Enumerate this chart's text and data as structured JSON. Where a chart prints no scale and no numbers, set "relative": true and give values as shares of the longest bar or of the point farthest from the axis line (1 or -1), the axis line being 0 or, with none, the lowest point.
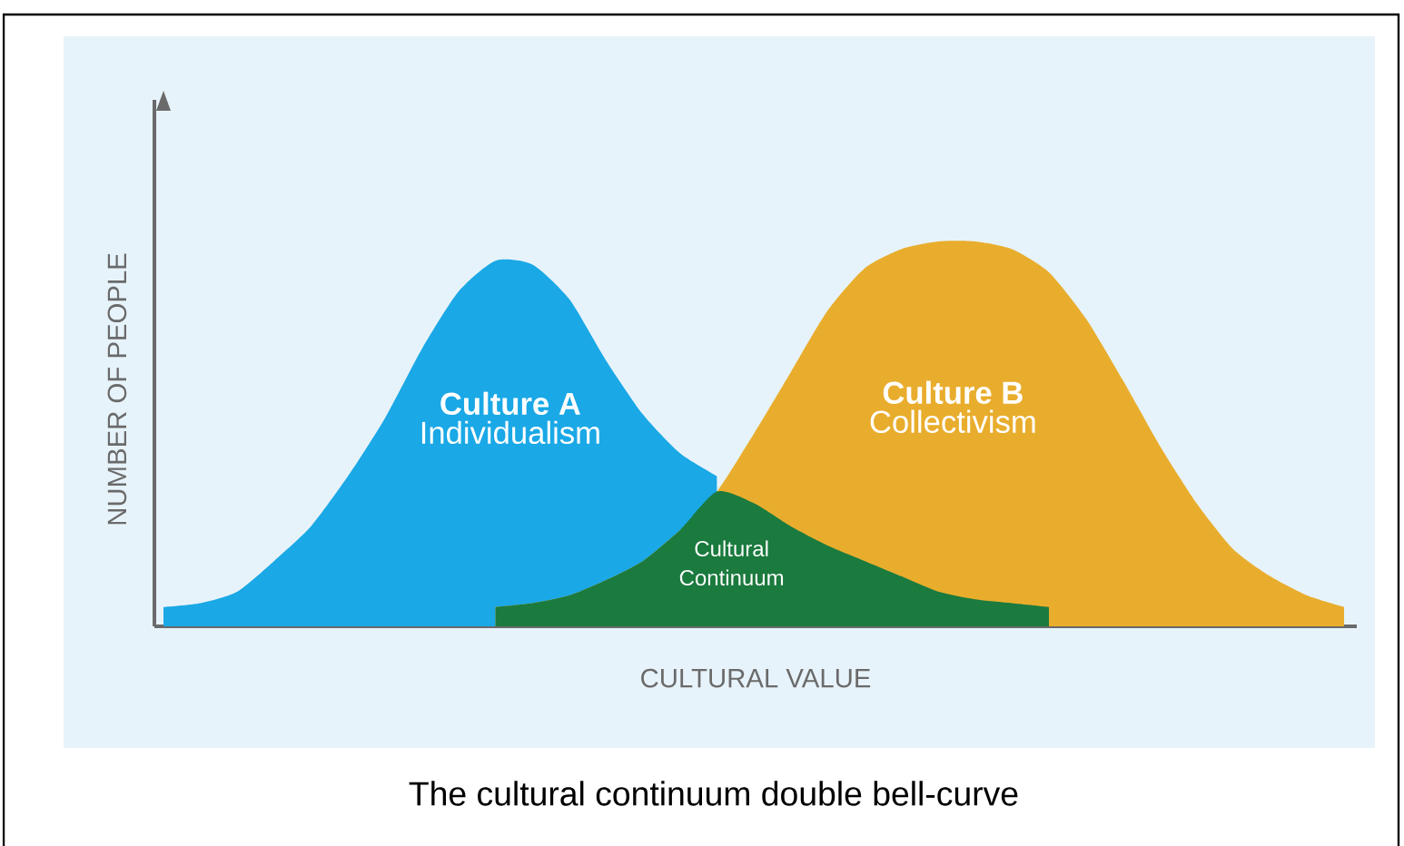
{
  "chart_data": {
    "type": "area",
    "relative": true,
    "title": "The cultural continuum double bell-curve",
    "xlabel": "CULTURAL VALUE",
    "ylabel": "NUMBER OF PEOPLE",
    "categories": [
      null,
      null,
      null,
      null,
      null,
      null,
      null,
      null,
      null,
      null,
      null,
      null,
      null,
      null,
      null,
      null,
      null,
      null,
      null,
      null,
      null,
      null,
      null,
      null,
      null,
      null,
      null,
      null,
      null,
      null,
      null,
      null,
      null
    ],
    "series": [
      {
        "name": "Culture A",
        "color": "#1aa8e6",
        "values": [
          0.05,
          0.06,
          0.09,
          0.17,
          0.26,
          0.39,
          0.54,
          0.72,
          0.87,
          0.95,
          0.94,
          0.85,
          0.69,
          0.55,
          0.45,
          0.39,
          null,
          null,
          null,
          null,
          null,
          null,
          null,
          null,
          null,
          null,
          null,
          null,
          null,
          null,
          null,
          null,
          null
        ]
      },
      {
        "name": "Culture B",
        "color": "#e9ad2d",
        "values": [
          null,
          null,
          null,
          null,
          null,
          null,
          null,
          null,
          null,
          0.05,
          0.06,
          0.08,
          0.12,
          0.17,
          0.25,
          0.35,
          0.5,
          0.66,
          0.82,
          0.93,
          0.98,
          1.0,
          1.0,
          0.98,
          0.92,
          0.8,
          0.64,
          0.47,
          0.32,
          0.2,
          0.13,
          0.08,
          0.05
        ]
      },
      {
        "name": "Cultural Continuum",
        "color": "#1b7a3e",
        "values": [
          null,
          null,
          null,
          null,
          null,
          null,
          null,
          null,
          null,
          0.05,
          0.06,
          0.08,
          0.12,
          0.17,
          0.25,
          0.35,
          0.32,
          0.26,
          0.21,
          0.17,
          0.13,
          0.09,
          0.07,
          0.06,
          0.05,
          null,
          null,
          null,
          null,
          null,
          null,
          null,
          null
        ]
      }
    ],
    "annotations": [
      "Individualism",
      "Collectivism"
    ]
  }
}
